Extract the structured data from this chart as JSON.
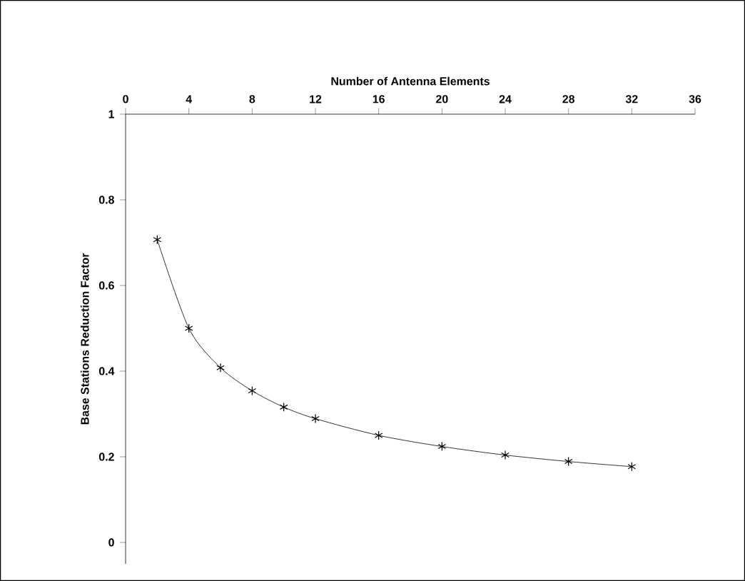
{
  "chart_data": {
    "type": "line",
    "xlabel": "Number of Antenna Elements",
    "ylabel": "Base Stations Reduction Factor",
    "x": [
      2,
      4,
      6,
      8,
      10,
      12,
      16,
      20,
      24,
      28,
      32
    ],
    "series": [
      {
        "color": "#000000",
        "values": [
          0.707,
          0.5,
          0.408,
          0.354,
          0.316,
          0.289,
          0.25,
          0.224,
          0.204,
          0.189,
          0.177
        ]
      }
    ],
    "xlim": [
      0,
      36
    ],
    "xticks": [
      0,
      4,
      8,
      12,
      16,
      20,
      24,
      28,
      32,
      36
    ],
    "ylim": [
      -0.05,
      1
    ],
    "yticks": [
      0,
      0.2,
      0.4,
      0.6,
      0.8,
      1
    ],
    "marker": "cross",
    "line_style": "solid"
  }
}
